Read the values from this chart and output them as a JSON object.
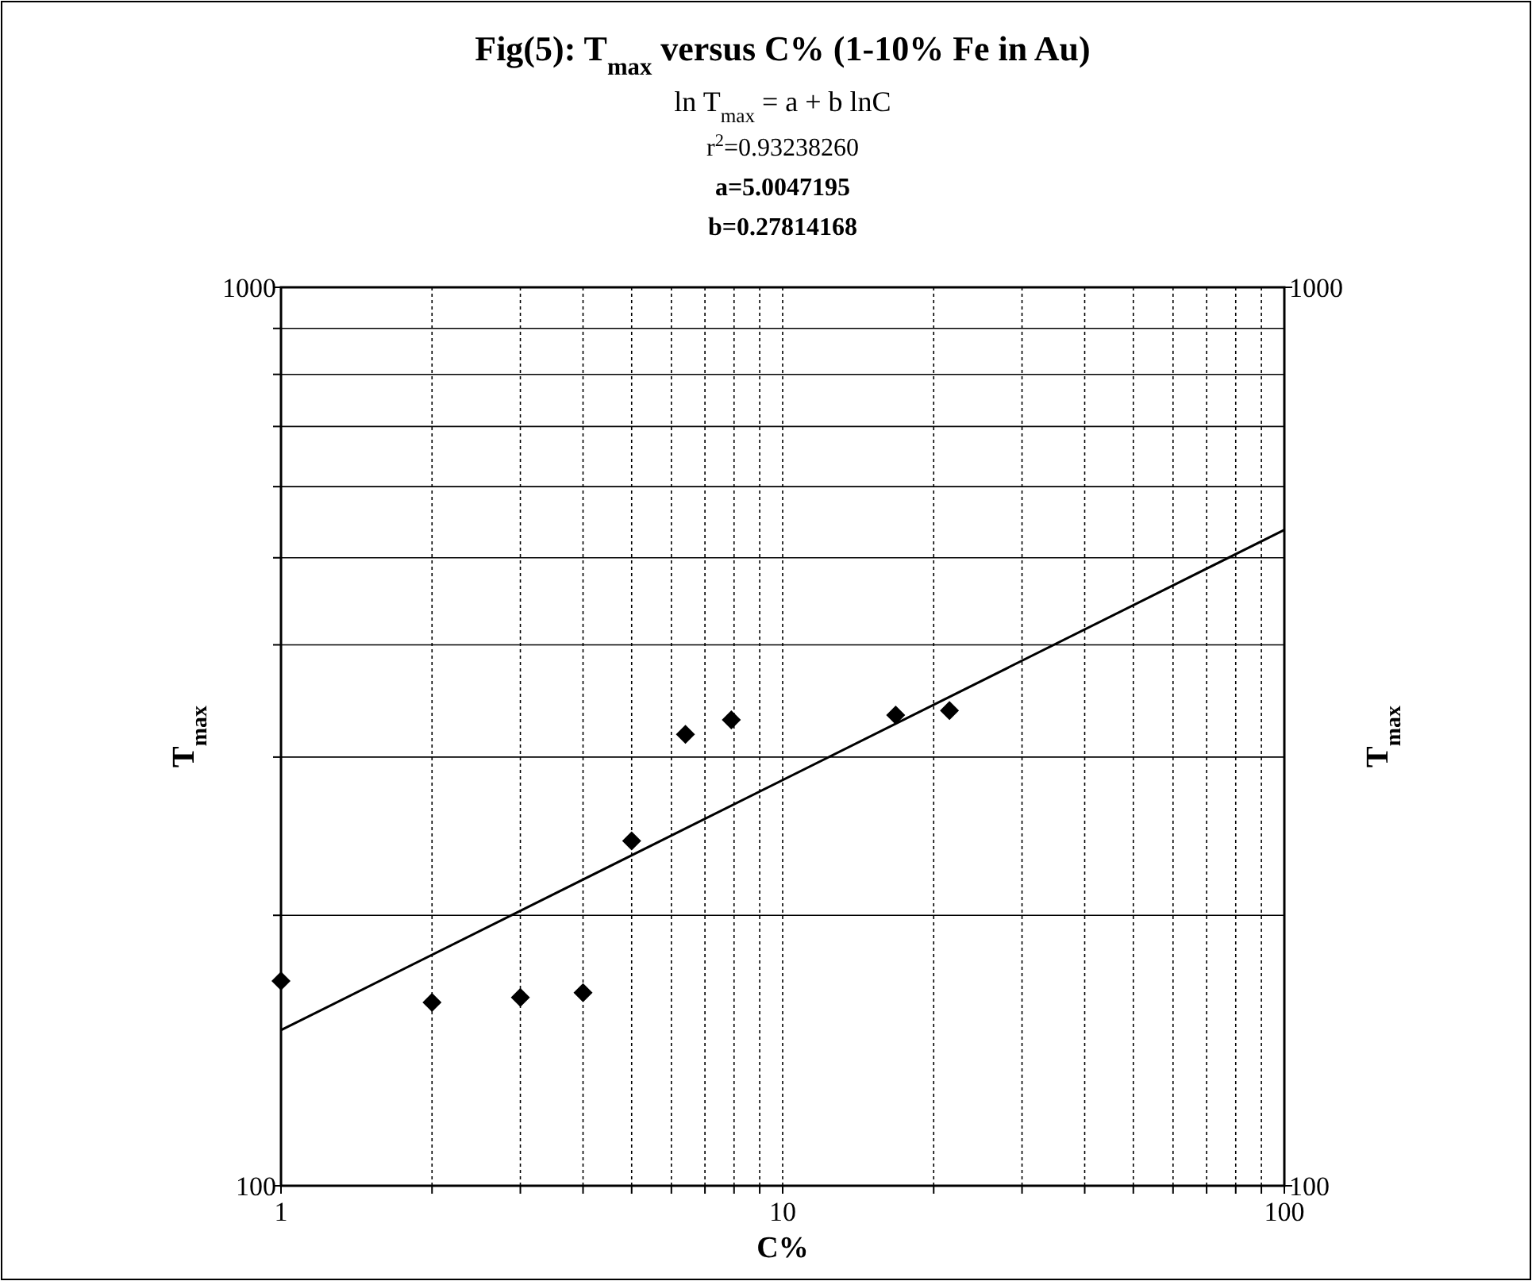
{
  "chart_data": {
    "type": "scatter",
    "title": "Fig(5): T$_{max}$ versus C% (1-10% Fe in Au)",
    "subtitle": "ln T$_{max}$ = a + b lnC",
    "annotations": [
      "r$^{2}$=0.93238260",
      "a=5.0047195",
      "b=0.27814168"
    ],
    "xlabel": "C%",
    "ylabel": "T$_{max}$",
    "y2label": "T$_{max}$",
    "log": "xy",
    "grid": true,
    "marker": "diamond",
    "xlim": [
      1,
      100
    ],
    "xticks": [
      1,
      {
        "value": 2,
        "label": null
      },
      {
        "value": 3,
        "label": null
      },
      {
        "value": 4,
        "label": null
      },
      {
        "value": 5,
        "label": null
      },
      {
        "value": 6,
        "label": null
      },
      {
        "value": 7,
        "label": null
      },
      {
        "value": 8,
        "label": null
      },
      {
        "value": 9,
        "label": null
      },
      10,
      {
        "value": 20,
        "label": null
      },
      {
        "value": 30,
        "label": null
      },
      {
        "value": 40,
        "label": null
      },
      {
        "value": 50,
        "label": null
      },
      {
        "value": 60,
        "label": null
      },
      {
        "value": 70,
        "label": null
      },
      {
        "value": 80,
        "label": null
      },
      {
        "value": 90,
        "label": null
      },
      100
    ],
    "ylim": [
      100,
      1000
    ],
    "yticks": [
      100,
      {
        "value": 200,
        "label": null
      },
      {
        "value": 300,
        "label": null
      },
      {
        "value": 400,
        "label": null
      },
      {
        "value": 500,
        "label": null
      },
      {
        "value": 600,
        "label": null
      },
      {
        "value": 700,
        "label": null
      },
      {
        "value": 800,
        "label": null
      },
      {
        "value": 900,
        "label": null
      },
      1000
    ],
    "y2lim": [
      100,
      1000
    ],
    "y2ticks": [
      100,
      1000
    ],
    "series": [
      {
        "color": "#000000",
        "x": [
          1,
          2,
          3,
          4,
          5,
          6.4,
          7.9,
          16.8,
          21.5
        ],
        "values": [
          169,
          160,
          162,
          164,
          242,
          318,
          330,
          334,
          338
        ]
      },
      {
        "type": "line",
        "color": "#000000",
        "marker": "none",
        "x": [
          1,
          100
        ],
        "values": [
          149,
          537
        ]
      }
    ]
  }
}
